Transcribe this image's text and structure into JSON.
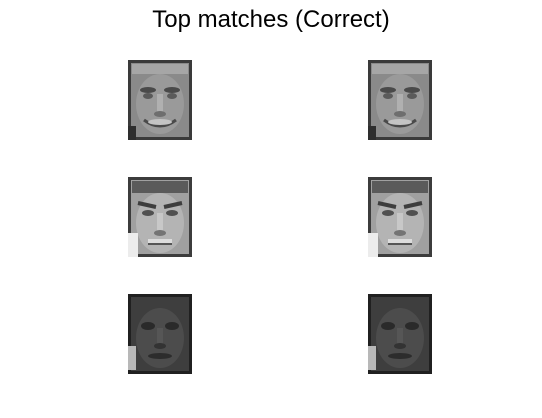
{
  "title": "Top matches (Correct)",
  "faces": [
    {
      "subject": "face-1",
      "tone": "light"
    },
    {
      "subject": "face-1",
      "tone": "light"
    },
    {
      "subject": "face-2",
      "tone": "light"
    },
    {
      "subject": "face-2",
      "tone": "light"
    },
    {
      "subject": "face-3",
      "tone": "dark"
    },
    {
      "subject": "face-3",
      "tone": "dark"
    }
  ]
}
